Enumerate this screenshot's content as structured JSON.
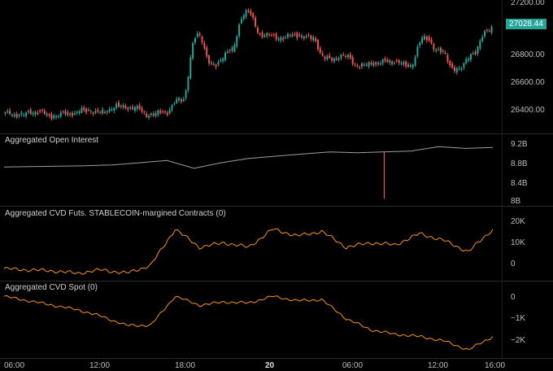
{
  "colors": {
    "background": "#000000",
    "separator": "#2a2a2a",
    "up_candle": "#26a69a",
    "down_candle": "#ef5350",
    "open_interest_line": "#9e9e9e",
    "cvd_line": "#f7931a",
    "badge": "#26a69a"
  },
  "price_pane": {
    "last_price_label": "27028.44",
    "y_ticks": [
      "27200.00",
      "27000.00",
      "26800.00",
      "26600.00",
      "26400.00"
    ]
  },
  "open_interest_pane": {
    "title": "Aggregated Open Interest",
    "y_ticks": [
      "9.2B",
      "8.8B",
      "8.4B",
      "8B"
    ]
  },
  "cvd_futures_pane": {
    "title": "Aggregated CVD Futs. STABLECOIN-margined Contracts (0)",
    "y_ticks": [
      "20K",
      "10K",
      "0"
    ]
  },
  "cvd_spot_pane": {
    "title": "Aggregated CVD Spot (0)",
    "y_ticks": [
      "0",
      "−1K",
      "−2K"
    ]
  },
  "x_axis": {
    "labels": [
      "06:00",
      "12:00",
      "18:00",
      "20",
      "06:00",
      "12:00",
      "16:00"
    ],
    "bold_label": "20"
  },
  "chart_data": [
    {
      "type": "candlestick",
      "title": "",
      "ylim": [
        26300,
        27220
      ],
      "x": [
        "06:00",
        "07:00",
        "08:00",
        "09:00",
        "10:00",
        "11:00",
        "12:00",
        "13:00",
        "14:00",
        "15:00",
        "16:00",
        "17:00",
        "18:00",
        "19:00",
        "20 00:00",
        "01:00",
        "02:00",
        "03:00",
        "04:00",
        "05:00",
        "06:00",
        "07:00",
        "08:00",
        "09:00",
        "10:00",
        "11:00",
        "12:00",
        "13:00",
        "14:00",
        "15:00",
        "16:00"
      ],
      "close": [
        26420,
        26410,
        26430,
        26400,
        26420,
        26440,
        26430,
        26470,
        26460,
        26410,
        26430,
        26520,
        26980,
        26760,
        26870,
        27150,
        26980,
        26960,
        26980,
        26960,
        26810,
        26830,
        26760,
        26780,
        26790,
        26760,
        26960,
        26860,
        26730,
        26850,
        27028
      ]
    },
    {
      "type": "line",
      "title": "Aggregated Open Interest",
      "ylim": [
        7.95,
        9.3
      ],
      "x": [
        "06:00",
        "08:00",
        "10:00",
        "12:00",
        "14:00",
        "16:00",
        "17:30",
        "18:00",
        "20:00",
        "20 00:00",
        "02:00",
        "04:00",
        "06:00",
        "08:00",
        "09:00",
        "10:00",
        "12:00",
        "14:00",
        "16:00"
      ],
      "values": [
        8.75,
        8.76,
        8.77,
        8.78,
        8.8,
        8.85,
        8.9,
        8.72,
        8.85,
        8.95,
        9.0,
        9.05,
        9.1,
        9.08,
        8.02,
        9.12,
        9.22,
        9.18,
        9.2
      ]
    },
    {
      "type": "line",
      "title": "Aggregated CVD Futs. STABLECOIN-margined Contracts (0)",
      "ylim": [
        -3000,
        24000
      ],
      "x": [
        "06:00",
        "08:00",
        "10:00",
        "12:00",
        "14:00",
        "16:00",
        "17:00",
        "18:00",
        "19:00",
        "20:00",
        "22:00",
        "20 00:00",
        "02:00",
        "04:00",
        "06:00",
        "08:00",
        "10:00",
        "12:00",
        "14:00",
        "15:30",
        "16:00"
      ],
      "values": [
        500,
        0,
        -500,
        -1500,
        0,
        -1500,
        2000,
        18000,
        10000,
        12000,
        10000,
        18000,
        15000,
        17000,
        10000,
        12000,
        11000,
        16000,
        13000,
        8000,
        18000
      ]
    },
    {
      "type": "line",
      "title": "Aggregated CVD Spot (0)",
      "ylim": [
        -2400,
        300
      ],
      "x": [
        "06:00",
        "08:00",
        "10:00",
        "12:00",
        "14:00",
        "16:00",
        "17:00",
        "18:00",
        "19:00",
        "20:00",
        "22:00",
        "20 00:00",
        "02:00",
        "04:00",
        "06:00",
        "08:00",
        "10:00",
        "12:00",
        "14:00",
        "15:30",
        "16:00"
      ],
      "values": [
        0,
        -200,
        -400,
        -600,
        -900,
        -1300,
        -1300,
        0,
        -400,
        -250,
        -300,
        0,
        -200,
        -150,
        -1000,
        -1500,
        -1700,
        -1800,
        -2000,
        -2400,
        -1800
      ]
    }
  ]
}
